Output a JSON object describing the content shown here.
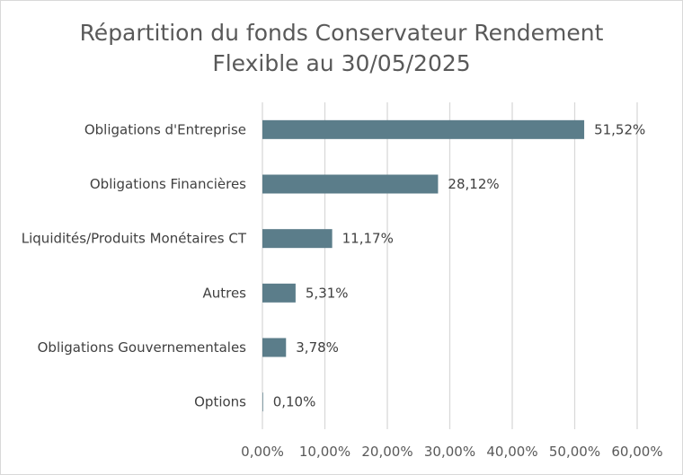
{
  "chart_data": {
    "type": "bar",
    "orientation": "horizontal",
    "title": [
      "Répartition du fonds Conservateur Rendement",
      "Flexible au 30/05/2025"
    ],
    "categories": [
      "Obligations d'Entreprise",
      "Obligations Financières",
      "Liquidités/Produits Monétaires CT",
      "Autres",
      "Obligations Gouvernementales",
      "Options"
    ],
    "values": [
      51.52,
      28.12,
      11.17,
      5.31,
      3.78,
      0.1
    ],
    "value_labels": [
      "51,52%",
      "28,12%",
      "11,17%",
      "5,31%",
      "3,78%",
      "0,10%"
    ],
    "xlim": [
      0,
      60
    ],
    "xticks": [
      0,
      10,
      20,
      30,
      40,
      50,
      60
    ],
    "xtick_labels": [
      "0,00%",
      "10,00%",
      "20,00%",
      "30,00%",
      "40,00%",
      "50,00%",
      "60,00%"
    ],
    "grid": true,
    "legend": "none",
    "colors": {
      "bar": "#5b7d8a",
      "grid": "#d9d9d9",
      "text": "#404040",
      "title": "#595959"
    }
  }
}
